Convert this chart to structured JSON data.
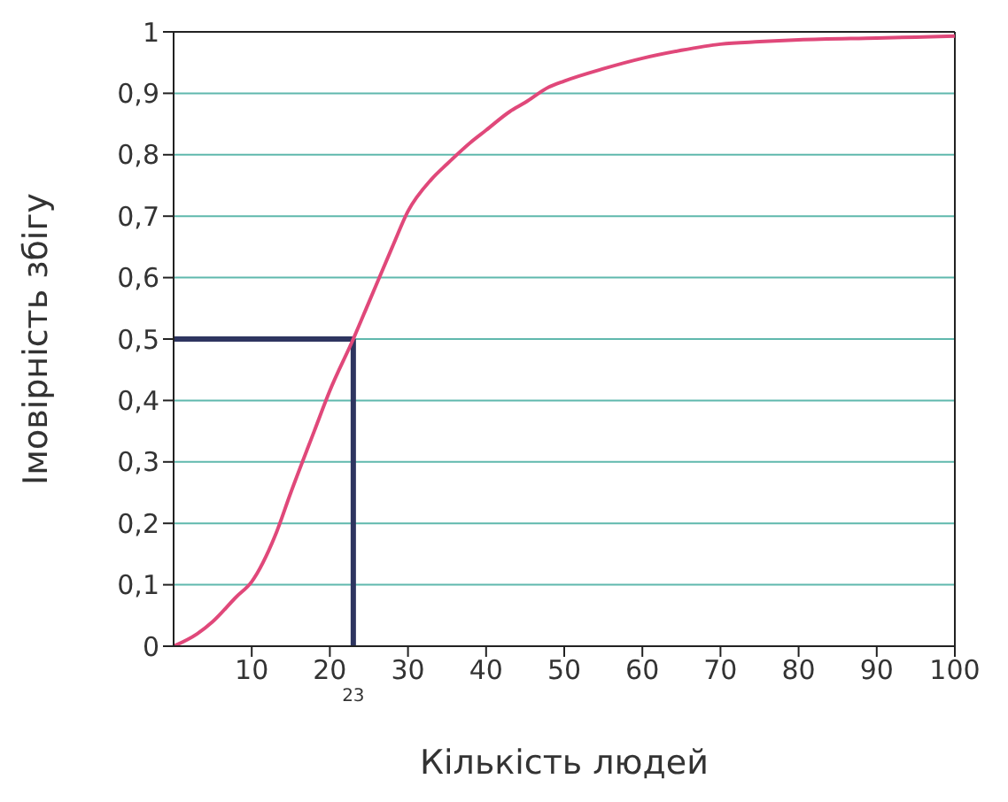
{
  "chart_data": {
    "type": "line",
    "xlabel": "Кількість людей",
    "ylabel": "Імовірність збігу",
    "x": [
      0,
      3,
      5,
      8,
      10,
      13,
      15,
      18,
      20,
      23,
      25,
      28,
      30,
      33,
      35,
      38,
      40,
      43,
      45,
      48,
      50,
      55,
      60,
      65,
      70,
      75,
      80,
      90,
      100
    ],
    "series": [
      {
        "color": "#e0487a",
        "values": [
          0,
          0.02,
          0.04,
          0.08,
          0.105,
          0.18,
          0.25,
          0.35,
          0.416,
          0.5,
          0.56,
          0.65,
          0.708,
          0.76,
          0.785,
          0.82,
          0.84,
          0.87,
          0.885,
          0.91,
          0.92,
          0.94,
          0.957,
          0.97,
          0.98,
          0.984,
          0.987,
          0.99,
          0.993
        ]
      }
    ],
    "xlim": [
      0,
      100
    ],
    "xticks": [
      10,
      20,
      30,
      40,
      50,
      60,
      70,
      80,
      90,
      100
    ],
    "ylim": [
      0,
      1
    ],
    "yticks": [
      0,
      {
        "value": 0.1,
        "label": "0,1"
      },
      {
        "value": 0.2,
        "label": "0,2"
      },
      {
        "value": 0.3,
        "label": "0,3"
      },
      {
        "value": 0.4,
        "label": "0,4"
      },
      {
        "value": 0.5,
        "label": "0,5"
      },
      {
        "value": 0.6,
        "label": "0,6"
      },
      {
        "value": 0.7,
        "label": "0,7"
      },
      {
        "value": 0.8,
        "label": "0,8"
      },
      {
        "value": 0.9,
        "label": "0,9"
      },
      1
    ],
    "grid": "y",
    "marker": "none",
    "line_style": "solid",
    "legend": false,
    "ref_lines": [
      {
        "axis": "x",
        "value": 23,
        "label": "23",
        "color": "#2e3560"
      },
      {
        "axis": "y",
        "value": 0.5,
        "color": "#2e3560"
      }
    ]
  }
}
